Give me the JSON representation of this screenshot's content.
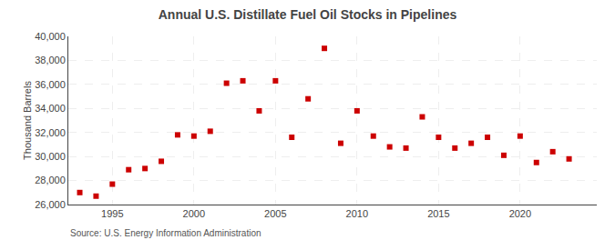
{
  "chart_data": {
    "type": "scatter",
    "title": "Annual U.S. Distillate Fuel Oil Stocks in Pipelines",
    "ylabel": "Thousand Barrels",
    "source": "Source: U.S. Energy Information Administration",
    "x": [
      1993,
      1994,
      1995,
      1996,
      1997,
      1998,
      1999,
      2000,
      2001,
      2002,
      2003,
      2004,
      2005,
      2006,
      2007,
      2008,
      2009,
      2010,
      2011,
      2012,
      2013,
      2014,
      2015,
      2016,
      2017,
      2018,
      2019,
      2020,
      2021,
      2022,
      2023
    ],
    "values": [
      27000,
      26700,
      27700,
      28900,
      29000,
      29600,
      31800,
      31700,
      32100,
      36100,
      36300,
      33800,
      36300,
      31600,
      34800,
      39000,
      31100,
      33800,
      31700,
      30800,
      30700,
      33300,
      31600,
      30700,
      31100,
      31600,
      30100,
      31700,
      29500,
      30400,
      29800
    ],
    "color": "#cc0000",
    "marker": "square",
    "xlim": [
      1992.3,
      2024.7
    ],
    "xticks": [
      1995,
      2000,
      2005,
      2010,
      2015,
      2020
    ],
    "ylim": [
      26000,
      40000
    ],
    "yticks": [
      {
        "value": 26000,
        "label": "26,000"
      },
      {
        "value": 28000,
        "label": "28,000"
      },
      {
        "value": 30000,
        "label": "30,000"
      },
      {
        "value": 32000,
        "label": "32,000"
      },
      {
        "value": 34000,
        "label": "34,000"
      },
      {
        "value": 36000,
        "label": "36,000"
      },
      {
        "value": 38000,
        "label": "38,000"
      },
      {
        "value": 40000,
        "label": "40,000"
      }
    ],
    "grid": true
  }
}
